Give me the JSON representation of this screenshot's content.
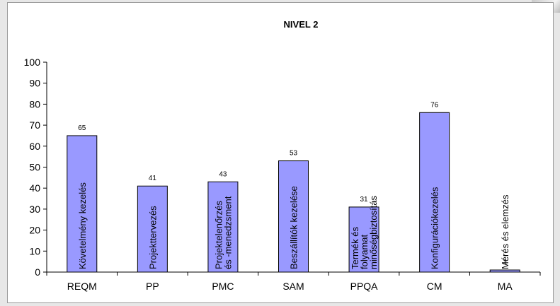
{
  "colors": {
    "bar_fill": "#9999ff",
    "bar_stroke": "#000000",
    "axis": "#000000",
    "background": "#ffffff"
  },
  "chart_data": {
    "type": "bar",
    "title": "NIVEL 2",
    "categories": [
      "REQM",
      "PP",
      "PMC",
      "SAM",
      "PPQA",
      "CM",
      "MA"
    ],
    "values": [
      65,
      41,
      43,
      53,
      31,
      76,
      1
    ],
    "value_labels": [
      "65",
      "41",
      "43",
      "53",
      "31",
      "76",
      "1"
    ],
    "bar_text": [
      [
        "Követelmény kezelés"
      ],
      [
        "Projekttervezés"
      ],
      [
        "Projektelenőrzés",
        "és -menedzsment"
      ],
      [
        "Beszállítók kezelése"
      ],
      [
        "Termék és",
        "folyamat",
        "minőségbiztosítás"
      ],
      [
        "Konfigurációkezelés"
      ],
      [
        "Mérés és elemzés"
      ]
    ],
    "ylim": [
      0,
      100
    ],
    "yticks": [
      "0",
      "10",
      "20",
      "30",
      "40",
      "50",
      "60",
      "70",
      "80",
      "90",
      "100"
    ],
    "xlabel": "",
    "ylabel": "",
    "grid": false,
    "legend": "none"
  }
}
